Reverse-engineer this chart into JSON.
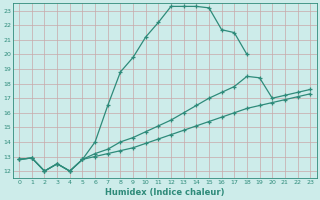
{
  "line1_x": [
    0,
    1,
    2,
    3,
    4,
    5,
    6,
    7,
    8,
    9,
    10,
    11,
    12,
    13,
    14,
    15,
    16,
    17,
    18
  ],
  "line1_y": [
    12.8,
    12.9,
    12.0,
    12.5,
    12.0,
    12.8,
    14.0,
    16.5,
    18.8,
    19.8,
    21.2,
    22.2,
    23.3,
    23.3,
    23.3,
    23.2,
    21.7,
    21.5,
    20.0
  ],
  "line2_x": [
    0,
    1,
    2,
    3,
    4,
    5,
    6,
    7,
    8,
    9,
    10,
    11,
    12,
    13,
    14,
    15,
    16,
    17,
    18,
    19,
    20,
    21,
    22,
    23
  ],
  "line2_y": [
    12.8,
    12.9,
    12.0,
    12.5,
    12.0,
    12.8,
    13.2,
    13.5,
    14.0,
    14.3,
    14.7,
    15.1,
    15.5,
    16.0,
    16.5,
    17.0,
    17.4,
    17.8,
    18.5,
    18.4,
    17.0,
    17.2,
    17.4,
    17.6
  ],
  "line3_x": [
    0,
    1,
    2,
    3,
    4,
    5,
    6,
    7,
    8,
    9,
    10,
    11,
    12,
    13,
    14,
    15,
    16,
    17,
    18,
    19,
    20,
    21,
    22,
    23
  ],
  "line3_y": [
    12.8,
    12.9,
    12.0,
    12.5,
    12.0,
    12.8,
    13.0,
    13.2,
    13.4,
    13.6,
    13.9,
    14.2,
    14.5,
    14.8,
    15.1,
    15.4,
    15.7,
    16.0,
    16.3,
    16.5,
    16.7,
    16.9,
    17.1,
    17.3
  ],
  "color": "#2e8b7a",
  "bg_color": "#cdecea",
  "grid_color": "#c8a8a8",
  "xlabel": "Humidex (Indice chaleur)",
  "xlim": [
    -0.5,
    23.5
  ],
  "ylim": [
    11.5,
    23.5
  ],
  "xticks": [
    0,
    1,
    2,
    3,
    4,
    5,
    6,
    7,
    8,
    9,
    10,
    11,
    12,
    13,
    14,
    15,
    16,
    17,
    18,
    19,
    20,
    21,
    22,
    23
  ],
  "yticks": [
    12,
    13,
    14,
    15,
    16,
    17,
    18,
    19,
    20,
    21,
    22,
    23
  ]
}
